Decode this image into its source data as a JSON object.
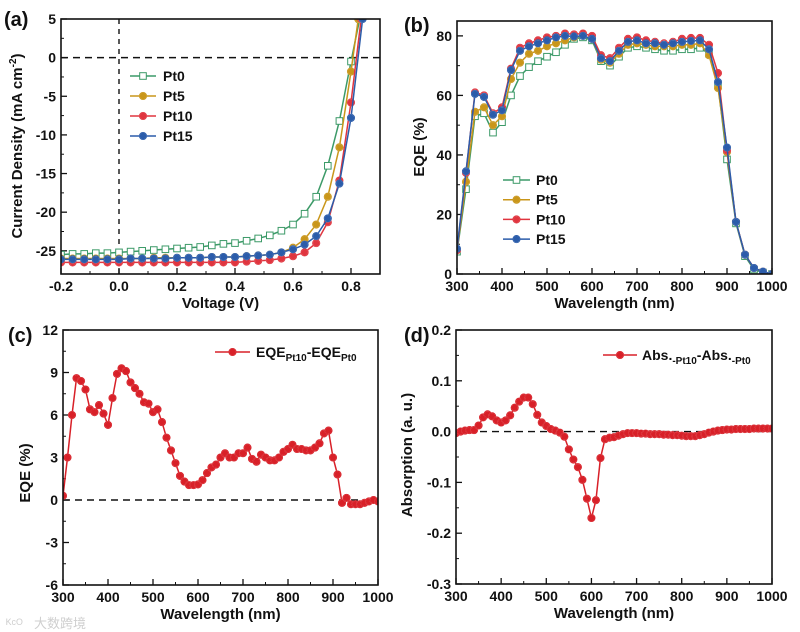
{
  "watermark": "大数跨境",
  "chart_data": [
    {
      "panel": "(a)",
      "type": "line",
      "xlabel": "Voltage (V)",
      "ylabel": "Current Density (mA cm",
      "ylabel_sup": "-2",
      "ylabel_end": ")",
      "xlim": [
        -0.2,
        0.9
      ],
      "ylim": [
        -28,
        5
      ],
      "xticks": [
        -0.2,
        0.0,
        0.2,
        0.4,
        0.6,
        0.8
      ],
      "xtick_labels": [
        "-0.2",
        "0.0",
        "0.2",
        "0.4",
        "0.6",
        "0.8"
      ],
      "yticks": [
        5,
        0,
        -5,
        -10,
        -15,
        -20,
        -25
      ],
      "ytick_labels": [
        "5",
        "0",
        "-5",
        "-10",
        "-15",
        "-20",
        "-25"
      ],
      "reference_lines": {
        "hline": 0,
        "vline": 0
      },
      "legend_position": "upper-left",
      "series": [
        {
          "name": "Pt0",
          "color": "#3c9a68",
          "marker": "square-open",
          "x": [
            -0.2,
            -0.16,
            -0.12,
            -0.08,
            -0.04,
            0,
            0.04,
            0.08,
            0.12,
            0.16,
            0.2,
            0.24,
            0.28,
            0.32,
            0.36,
            0.4,
            0.44,
            0.48,
            0.52,
            0.56,
            0.6,
            0.64,
            0.68,
            0.72,
            0.76,
            0.8,
            0.83
          ],
          "y": [
            -25.5,
            -25.4,
            -25.4,
            -25.3,
            -25.3,
            -25.2,
            -25.1,
            -25.0,
            -24.9,
            -24.8,
            -24.7,
            -24.6,
            -24.5,
            -24.3,
            -24.1,
            -24.0,
            -23.7,
            -23.4,
            -23.0,
            -22.4,
            -21.6,
            -20.2,
            -18.0,
            -14.0,
            -8.2,
            -0.5,
            5
          ]
        },
        {
          "name": "Pt5",
          "color": "#c9961a",
          "marker": "circle",
          "x": [
            -0.2,
            -0.16,
            -0.12,
            -0.08,
            -0.04,
            0,
            0.04,
            0.08,
            0.12,
            0.16,
            0.2,
            0.24,
            0.28,
            0.32,
            0.36,
            0.4,
            0.44,
            0.48,
            0.52,
            0.56,
            0.6,
            0.64,
            0.68,
            0.72,
            0.76,
            0.8,
            0.825
          ],
          "y": [
            -26.0,
            -26.0,
            -26.0,
            -26.0,
            -26.0,
            -26.0,
            -26.0,
            -26.0,
            -25.9,
            -25.9,
            -25.9,
            -25.9,
            -25.9,
            -25.8,
            -25.8,
            -25.8,
            -25.7,
            -25.6,
            -25.5,
            -25.2,
            -24.6,
            -23.5,
            -21.6,
            -18.0,
            -11.6,
            -1.8,
            5
          ]
        },
        {
          "name": "Pt10",
          "color": "#e0353f",
          "marker": "circle",
          "x": [
            -0.2,
            -0.16,
            -0.12,
            -0.08,
            -0.04,
            0,
            0.04,
            0.08,
            0.12,
            0.16,
            0.2,
            0.24,
            0.28,
            0.32,
            0.36,
            0.4,
            0.44,
            0.48,
            0.52,
            0.56,
            0.6,
            0.64,
            0.68,
            0.72,
            0.76,
            0.8,
            0.835
          ],
          "y": [
            -26.5,
            -26.5,
            -26.5,
            -26.5,
            -26.5,
            -26.5,
            -26.5,
            -26.5,
            -26.5,
            -26.5,
            -26.5,
            -26.5,
            -26.5,
            -26.5,
            -26.5,
            -26.5,
            -26.4,
            -26.3,
            -26.2,
            -26.0,
            -25.7,
            -25.2,
            -24.0,
            -21.3,
            -15.9,
            -5.8,
            5
          ]
        },
        {
          "name": "Pt15",
          "color": "#2b5caa",
          "marker": "circle",
          "x": [
            -0.2,
            -0.16,
            -0.12,
            -0.08,
            -0.04,
            0,
            0.04,
            0.08,
            0.12,
            0.16,
            0.2,
            0.24,
            0.28,
            0.32,
            0.36,
            0.4,
            0.44,
            0.48,
            0.52,
            0.56,
            0.6,
            0.64,
            0.68,
            0.72,
            0.76,
            0.8,
            0.84
          ],
          "y": [
            -26.1,
            -26.1,
            -26.1,
            -26.1,
            -26.1,
            -26.1,
            -26.0,
            -26.0,
            -26.0,
            -26.0,
            -25.9,
            -25.9,
            -25.9,
            -25.8,
            -25.8,
            -25.8,
            -25.7,
            -25.6,
            -25.5,
            -25.2,
            -24.8,
            -24.2,
            -23.1,
            -20.8,
            -16.3,
            -7.8,
            5
          ]
        }
      ]
    },
    {
      "panel": "(b)",
      "type": "line",
      "xlabel": "Wavelength (nm)",
      "ylabel": "EQE (%)",
      "xlim": [
        300,
        1000
      ],
      "ylim": [
        0,
        85
      ],
      "xticks": [
        300,
        400,
        500,
        600,
        700,
        800,
        900,
        1000
      ],
      "xtick_labels": [
        "300",
        "400",
        "500",
        "600",
        "700",
        "800",
        "900",
        "1000"
      ],
      "yticks": [
        0,
        20,
        40,
        60,
        80
      ],
      "ytick_labels": [
        "0",
        "20",
        "40",
        "60",
        "80"
      ],
      "legend_position": "lower-left",
      "x": [
        300,
        320,
        340,
        360,
        380,
        400,
        420,
        440,
        460,
        480,
        500,
        520,
        540,
        560,
        580,
        600,
        620,
        640,
        660,
        680,
        700,
        720,
        740,
        760,
        780,
        800,
        820,
        840,
        860,
        880,
        900,
        920,
        940,
        960,
        980,
        1000
      ],
      "series": [
        {
          "name": "Pt0",
          "color": "#3c9a68",
          "marker": "square-open",
          "y": [
            7.5,
            28.5,
            53,
            54,
            47.5,
            51,
            60,
            66.5,
            69.5,
            71.5,
            73,
            74.5,
            77,
            79,
            79.5,
            78.5,
            71.5,
            70,
            73,
            76,
            76.5,
            76,
            75.5,
            75,
            75,
            75.5,
            75.5,
            76,
            74,
            63.5,
            38.5,
            17,
            6,
            1.5,
            0.5,
            0
          ]
        },
        {
          "name": "Pt5",
          "color": "#c9961a",
          "marker": "circle",
          "y": [
            8,
            31,
            54.5,
            56,
            50,
            53,
            65.5,
            71,
            74,
            75,
            76.5,
            77.5,
            78.5,
            79.5,
            80,
            79,
            72,
            71,
            74,
            77,
            77.5,
            77,
            76.5,
            76.5,
            76.5,
            77,
            77,
            77.5,
            73.5,
            62.5,
            41,
            17.5,
            6.5,
            2,
            0.8,
            0
          ]
        },
        {
          "name": "Pt10",
          "color": "#e0353f",
          "marker": "circle",
          "y": [
            8,
            34,
            61,
            60,
            54,
            56,
            69,
            76,
            77.5,
            78.5,
            79.5,
            80,
            80.8,
            80.5,
            80.8,
            80,
            73.5,
            72.5,
            76,
            79,
            79.5,
            78.5,
            78,
            77.5,
            78,
            79,
            79.3,
            79.3,
            77,
            67.5,
            41.5,
            17.5,
            6.5,
            2,
            0.8,
            0
          ]
        },
        {
          "name": "Pt15",
          "color": "#2b5caa",
          "marker": "circle",
          "y": [
            8.5,
            34.5,
            60.5,
            59.5,
            53.5,
            55,
            68.5,
            75,
            76.5,
            77.5,
            78.5,
            79.5,
            80,
            79.8,
            80,
            79,
            72.5,
            71.5,
            75,
            78,
            78.5,
            77.5,
            77.5,
            77,
            77.5,
            78,
            78.3,
            78.5,
            75.5,
            64.5,
            42.5,
            17.5,
            6.5,
            2,
            0.8,
            0
          ]
        }
      ]
    },
    {
      "panel": "(c)",
      "type": "line",
      "xlabel": "Wavelength (nm)",
      "ylabel": "EQE (%)",
      "xlim": [
        300,
        1000
      ],
      "ylim": [
        -6,
        12
      ],
      "xticks": [
        300,
        400,
        500,
        600,
        700,
        800,
        900,
        1000
      ],
      "xtick_labels": [
        "300",
        "400",
        "500",
        "600",
        "700",
        "800",
        "900",
        "1000"
      ],
      "yticks": [
        -6,
        -3,
        0,
        3,
        6,
        9,
        12
      ],
      "ytick_labels": [
        "-6",
        "-3",
        "0",
        "3",
        "6",
        "9",
        "12"
      ],
      "reference_lines": {
        "hline": 0
      },
      "legend_position": "top-right",
      "legend_parts": [
        "EQE",
        "Pt10",
        "-EQE",
        "Pt0"
      ],
      "x_start": 300,
      "x_step": 10,
      "series": [
        {
          "name": "EQE_Pt10-EQE_Pt0",
          "color": "#d82028",
          "marker": "circle",
          "y": [
            0.3,
            3.0,
            6.0,
            8.6,
            8.4,
            7.8,
            6.4,
            6.2,
            6.7,
            6.1,
            5.3,
            7.2,
            8.9,
            9.3,
            9.1,
            8.3,
            7.9,
            7.5,
            6.9,
            6.8,
            6.2,
            6.4,
            5.5,
            4.4,
            3.5,
            2.6,
            1.7,
            1.3,
            1.05,
            1.05,
            1.1,
            1.4,
            1.9,
            2.3,
            2.5,
            3.0,
            3.3,
            3.0,
            3.0,
            3.3,
            3.3,
            3.7,
            2.9,
            2.7,
            3.2,
            3.0,
            2.8,
            2.8,
            3.0,
            3.4,
            3.6,
            3.9,
            3.6,
            3.6,
            3.5,
            3.5,
            3.7,
            4.0,
            4.7,
            4.9,
            3.0,
            1.8,
            -0.2,
            0.15,
            -0.3,
            -0.3,
            -0.3,
            -0.2,
            -0.1,
            0.0,
            -0.1
          ]
        }
      ]
    },
    {
      "panel": "(d)",
      "type": "line",
      "xlabel": "Wavelength (nm)",
      "ylabel": "Absorption (a. u.)",
      "xlim": [
        300,
        1000
      ],
      "ylim": [
        -0.3,
        0.2
      ],
      "xticks": [
        300,
        400,
        500,
        600,
        700,
        800,
        900,
        1000
      ],
      "xtick_labels": [
        "300",
        "400",
        "500",
        "600",
        "700",
        "800",
        "900",
        "1000"
      ],
      "yticks": [
        -0.3,
        -0.2,
        -0.1,
        0.0,
        0.1,
        0.2
      ],
      "ytick_labels": [
        "-0.3",
        "-0.2",
        "-0.1",
        "0.0",
        "0.1",
        "0.2"
      ],
      "reference_lines": {
        "hline": 0
      },
      "legend_position": "top-right",
      "legend_parts": [
        "Abs.",
        "-Pt10",
        "-Abs.",
        "-Pt0"
      ],
      "x_start": 300,
      "x_step": 10,
      "series": [
        {
          "name": "Abs_Pt10-Abs_Pt0",
          "color": "#d82028",
          "marker": "circle",
          "y": [
            -0.003,
            0,
            0.002,
            0.003,
            0.003,
            0.012,
            0.028,
            0.034,
            0.03,
            0.022,
            0.018,
            0.022,
            0.032,
            0.047,
            0.059,
            0.067,
            0.067,
            0.054,
            0.033,
            0.018,
            0.011,
            0.005,
            0.002,
            -0.002,
            -0.01,
            -0.035,
            -0.055,
            -0.07,
            -0.095,
            -0.132,
            -0.17,
            -0.135,
            -0.052,
            -0.015,
            -0.012,
            -0.011,
            -0.008,
            -0.005,
            -0.003,
            -0.003,
            -0.003,
            -0.004,
            -0.004,
            -0.005,
            -0.005,
            -0.005,
            -0.006,
            -0.006,
            -0.007,
            -0.007,
            -0.008,
            -0.009,
            -0.009,
            -0.009,
            -0.007,
            -0.005,
            -0.002,
            0,
            0.002,
            0.003,
            0.004,
            0.004,
            0.005,
            0.005,
            0.005,
            0.005,
            0.006,
            0.006,
            0.006,
            0.006,
            0.006
          ]
        }
      ]
    }
  ]
}
